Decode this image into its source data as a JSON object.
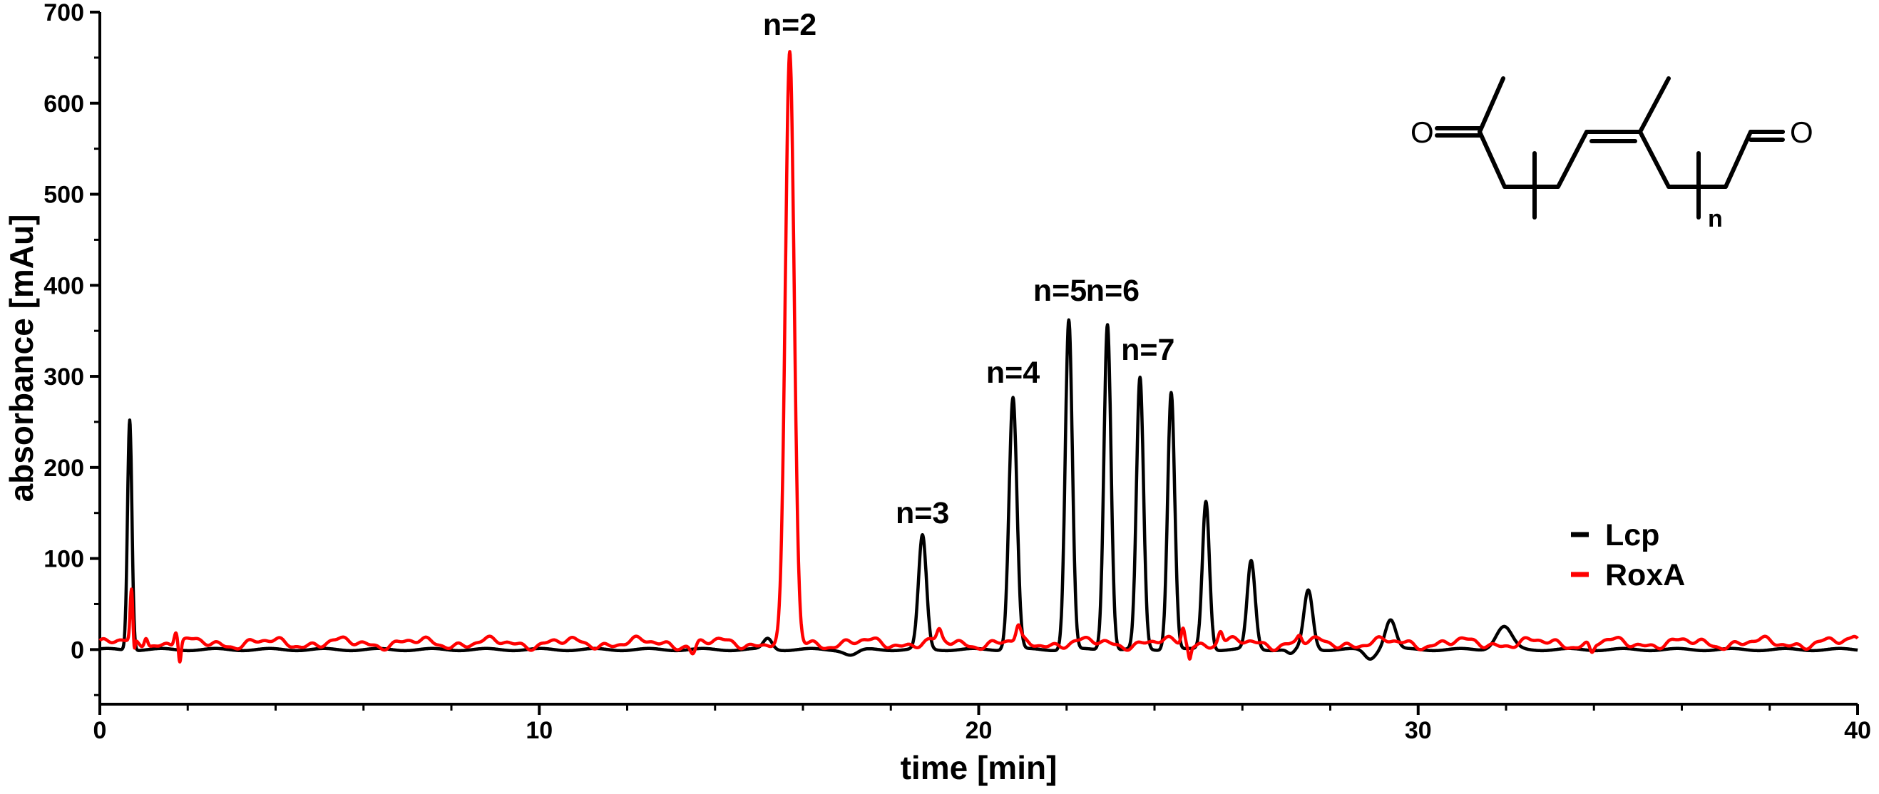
{
  "chart_data": {
    "type": "line",
    "xlabel": "time [min]",
    "ylabel": "absorbance [mAu]",
    "xlim": [
      0,
      40
    ],
    "ylim": [
      -60,
      700
    ],
    "x_ticks": [
      0,
      10,
      20,
      30,
      40
    ],
    "x_tick_labels": [
      "0",
      "10",
      "20",
      "30",
      "40"
    ],
    "y_ticks": [
      0,
      100,
      200,
      300,
      400,
      500,
      600,
      700
    ],
    "y_tick_labels": [
      "0",
      "100",
      "200",
      "300",
      "400",
      "500",
      "600",
      "700"
    ],
    "grid": false,
    "legend_position": "right",
    "series": [
      {
        "name": "Lcp",
        "color": "#000000",
        "baseline": 0,
        "peaks": [
          {
            "x": 0.68,
            "y": 253,
            "width": 0.05
          },
          {
            "x": 15.2,
            "y": 12,
            "width": 0.1
          },
          {
            "x": 18.72,
            "y": 125,
            "width": 0.09
          },
          {
            "x": 20.78,
            "y": 277,
            "width": 0.09
          },
          {
            "x": 22.05,
            "y": 362,
            "width": 0.08
          },
          {
            "x": 22.93,
            "y": 358,
            "width": 0.08
          },
          {
            "x": 23.67,
            "y": 298,
            "width": 0.08
          },
          {
            "x": 24.38,
            "y": 283,
            "width": 0.08
          },
          {
            "x": 25.17,
            "y": 163,
            "width": 0.08
          },
          {
            "x": 26.2,
            "y": 97,
            "width": 0.09
          },
          {
            "x": 27.5,
            "y": 65,
            "width": 0.1
          },
          {
            "x": 29.37,
            "y": 33,
            "width": 0.12
          },
          {
            "x": 31.95,
            "y": 25,
            "width": 0.18
          }
        ],
        "dips": [
          {
            "x": 17.1,
            "y": -6,
            "width": 0.15
          },
          {
            "x": 27.1,
            "y": -5,
            "width": 0.08
          },
          {
            "x": 28.9,
            "y": -10,
            "width": 0.12
          }
        ]
      },
      {
        "name": "RoxA",
        "color": "#ff0000",
        "baseline": 7,
        "peaks": [
          {
            "x": 0.72,
            "y": 62,
            "width": 0.03
          },
          {
            "x": 1.05,
            "y": 18,
            "width": 0.04
          },
          {
            "x": 1.73,
            "y": 22,
            "width": 0.04
          },
          {
            "x": 15.7,
            "y": 653,
            "width": 0.1
          },
          {
            "x": 19.1,
            "y": 18,
            "width": 0.05
          },
          {
            "x": 20.9,
            "y": 22,
            "width": 0.05
          },
          {
            "x": 24.65,
            "y": 25,
            "width": 0.04
          },
          {
            "x": 25.5,
            "y": 20,
            "width": 0.05
          },
          {
            "x": 27.3,
            "y": 14,
            "width": 0.05
          },
          {
            "x": 39.95,
            "y": 14,
            "width": 0.08
          }
        ],
        "dips": [
          {
            "x": 0.78,
            "y": -8,
            "width": 0.02
          },
          {
            "x": 1.82,
            "y": -15,
            "width": 0.03
          },
          {
            "x": 13.5,
            "y": -4,
            "width": 0.06
          },
          {
            "x": 24.8,
            "y": -6,
            "width": 0.03
          },
          {
            "x": 33.95,
            "y": -4,
            "width": 0.05
          }
        ]
      }
    ],
    "annotations": [
      {
        "text": "n=2",
        "x": 15.7,
        "y": 675
      },
      {
        "text": "n=3",
        "x": 18.72,
        "y": 139
      },
      {
        "text": "n=4",
        "x": 20.78,
        "y": 293
      },
      {
        "text": "n=5",
        "x": 21.85,
        "y": 383
      },
      {
        "text": "n=6",
        "x": 23.05,
        "y": 383
      },
      {
        "text": "n=7",
        "x": 23.85,
        "y": 318
      }
    ]
  },
  "legend": {
    "items": [
      {
        "label": "Lcp",
        "color": "#000000"
      },
      {
        "label": "RoxA",
        "color": "#ff0000"
      }
    ]
  },
  "structure": {
    "left_atom": "O",
    "right_atom": "O",
    "repeat_subscript": "n"
  }
}
